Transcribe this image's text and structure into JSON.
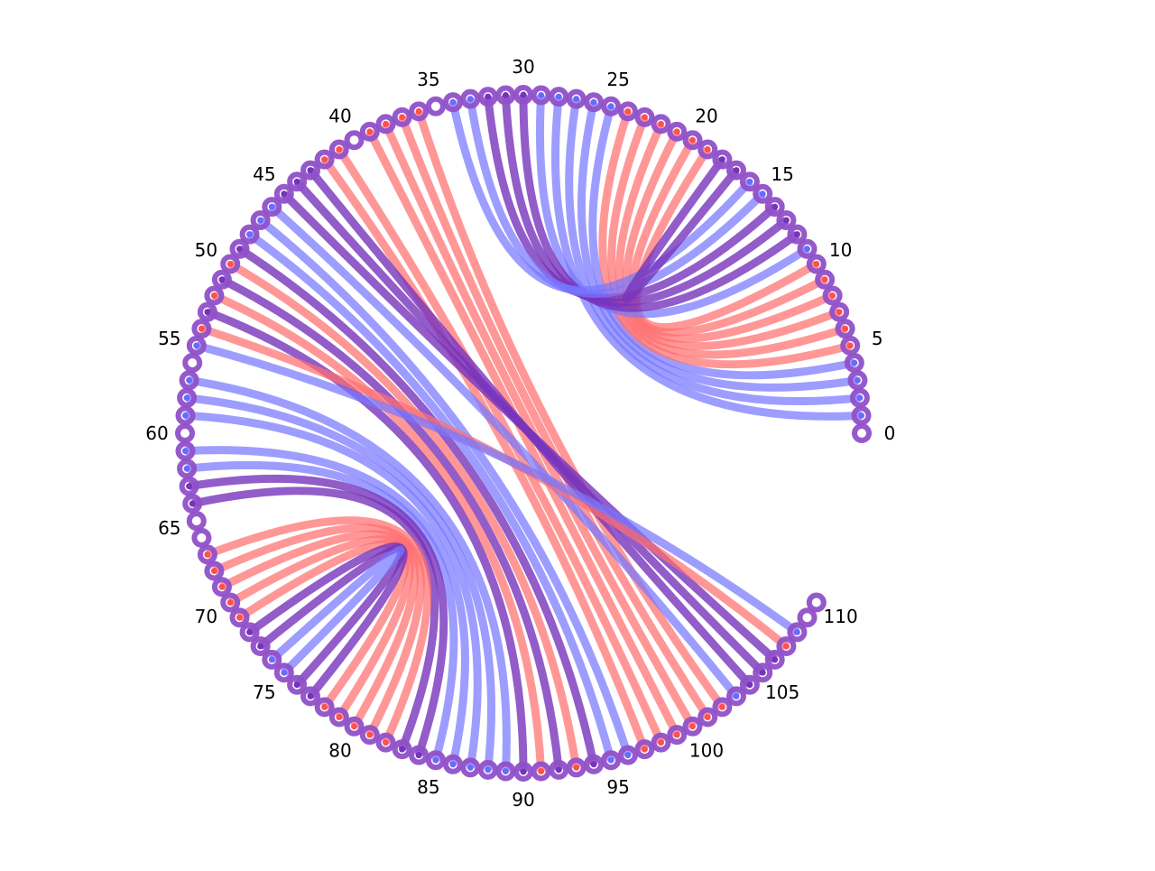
{
  "colors": {
    "red": "#ff6f6f",
    "blue": "#7777ff",
    "purple": "#7733bb",
    "ring": "#9050c8",
    "dot_white": "#ffffff",
    "dot_red": "#ff5050",
    "dot_blue": "#6a6aff",
    "background": "#ffffff"
  },
  "nodes": {
    "count": 111,
    "label_step": 5,
    "labels": [
      "0",
      "5",
      "10",
      "15",
      "20",
      "25",
      "30",
      "35",
      "40",
      "45",
      "50",
      "55",
      "60",
      "65",
      "70",
      "75",
      "80",
      "85",
      "90",
      "95",
      "100",
      "105",
      "110"
    ]
  },
  "chords": [
    {
      "from": 1,
      "to": 28,
      "color": "blue"
    },
    {
      "from": 2,
      "to": 27,
      "color": "blue"
    },
    {
      "from": 3,
      "to": 26,
      "color": "blue"
    },
    {
      "from": 4,
      "to": 25,
      "color": "blue"
    },
    {
      "from": 5,
      "to": 24,
      "color": "red"
    },
    {
      "from": 6,
      "to": 23,
      "color": "red"
    },
    {
      "from": 7,
      "to": 22,
      "color": "red"
    },
    {
      "from": 8,
      "to": 21,
      "color": "red"
    },
    {
      "from": 9,
      "to": 20,
      "color": "red"
    },
    {
      "from": 10,
      "to": 19,
      "color": "red"
    },
    {
      "from": 11,
      "to": 29,
      "color": "blue"
    },
    {
      "from": 12,
      "to": 30,
      "color": "purple"
    },
    {
      "from": 13,
      "to": 31,
      "color": "purple"
    },
    {
      "from": 14,
      "to": 32,
      "color": "purple"
    },
    {
      "from": 15,
      "to": 33,
      "color": "blue"
    },
    {
      "from": 16,
      "to": 34,
      "color": "blue"
    },
    {
      "from": 17,
      "to": 18,
      "color": "purple"
    },
    {
      "from": 36,
      "to": 102,
      "color": "red"
    },
    {
      "from": 37,
      "to": 101,
      "color": "red"
    },
    {
      "from": 38,
      "to": 100,
      "color": "red"
    },
    {
      "from": 39,
      "to": 99,
      "color": "red"
    },
    {
      "from": 41,
      "to": 98,
      "color": "red"
    },
    {
      "from": 42,
      "to": 97,
      "color": "red"
    },
    {
      "from": 43,
      "to": 104,
      "color": "purple"
    },
    {
      "from": 44,
      "to": 105,
      "color": "purple"
    },
    {
      "from": 45,
      "to": 106,
      "color": "purple"
    },
    {
      "from": 46,
      "to": 103,
      "color": "blue"
    },
    {
      "from": 47,
      "to": 96,
      "color": "blue"
    },
    {
      "from": 48,
      "to": 95,
      "color": "blue"
    },
    {
      "from": 49,
      "to": 94,
      "color": "purple"
    },
    {
      "from": 50,
      "to": 93,
      "color": "red"
    },
    {
      "from": 51,
      "to": 92,
      "color": "purple"
    },
    {
      "from": 52,
      "to": 91,
      "color": "red"
    },
    {
      "from": 53,
      "to": 90,
      "color": "purple"
    },
    {
      "from": 54,
      "to": 107,
      "color": "red"
    },
    {
      "from": 55,
      "to": 108,
      "color": "blue"
    },
    {
      "from": 57,
      "to": 89,
      "color": "blue"
    },
    {
      "from": 58,
      "to": 88,
      "color": "blue"
    },
    {
      "from": 59,
      "to": 87,
      "color": "blue"
    },
    {
      "from": 61,
      "to": 86,
      "color": "blue"
    },
    {
      "from": 62,
      "to": 85,
      "color": "blue"
    },
    {
      "from": 63,
      "to": 84,
      "color": "purple"
    },
    {
      "from": 64,
      "to": 83,
      "color": "purple"
    },
    {
      "from": 67,
      "to": 82,
      "color": "red"
    },
    {
      "from": 68,
      "to": 81,
      "color": "red"
    },
    {
      "from": 69,
      "to": 80,
      "color": "red"
    },
    {
      "from": 70,
      "to": 79,
      "color": "red"
    },
    {
      "from": 71,
      "to": 78,
      "color": "red"
    },
    {
      "from": 72,
      "to": 77,
      "color": "purple"
    },
    {
      "from": 73,
      "to": 76,
      "color": "purple"
    },
    {
      "from": 74,
      "to": 75,
      "color": "blue"
    }
  ]
}
